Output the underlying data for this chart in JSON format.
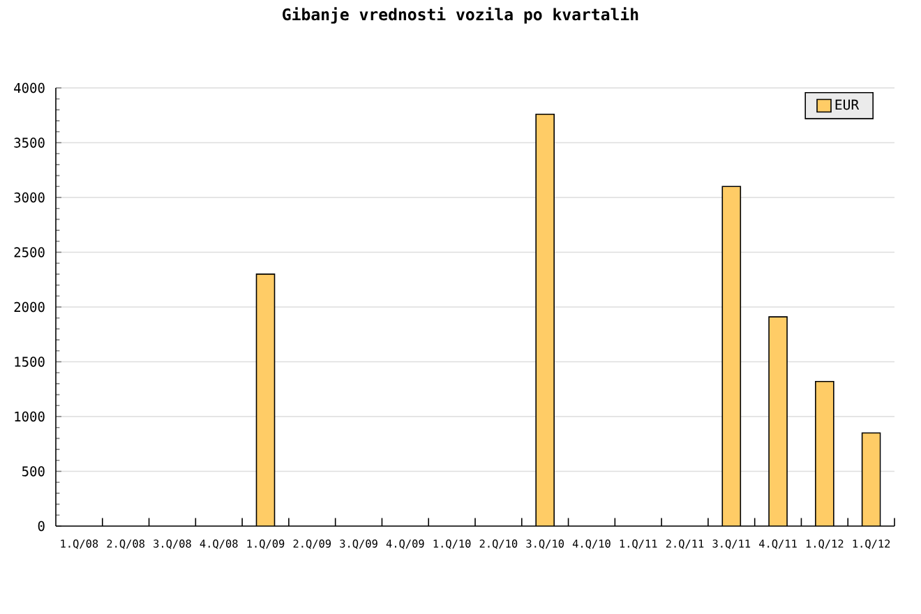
{
  "chart_data": {
    "type": "bar",
    "title": "Gibanje vrednosti vozila po kvartalih",
    "categories": [
      "1.Q/08",
      "2.Q/08",
      "3.Q/08",
      "4.Q/08",
      "1.Q/09",
      "2.Q/09",
      "3.Q/09",
      "4.Q/09",
      "1.Q/10",
      "2.Q/10",
      "3.Q/10",
      "4.Q/10",
      "1.Q/11",
      "2.Q/11",
      "3.Q/11",
      "4.Q/11",
      "1.Q/12",
      "1.Q/12"
    ],
    "series": [
      {
        "name": "EUR",
        "color": "#ffcc66",
        "values": [
          null,
          null,
          null,
          null,
          2300,
          null,
          null,
          null,
          null,
          null,
          3760,
          null,
          null,
          null,
          3100,
          1910,
          1320,
          850
        ]
      }
    ],
    "ylim": [
      0,
      4000
    ],
    "yticks": [
      0,
      500,
      1000,
      1500,
      2000,
      2500,
      3000,
      3500,
      4000
    ],
    "grid": "y",
    "legend": "top right"
  }
}
